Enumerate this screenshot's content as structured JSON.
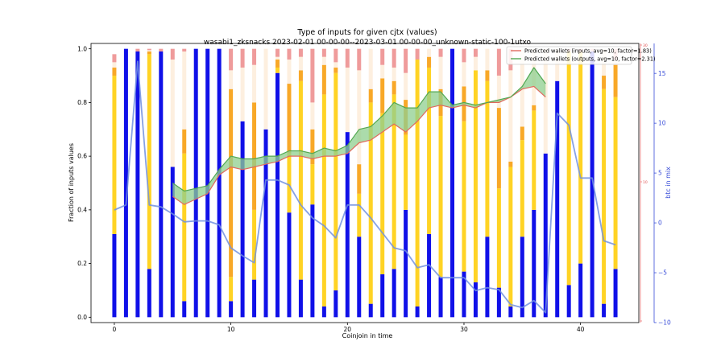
{
  "chart_data": {
    "type": "bar",
    "title": "Type of inputs for given cjtx (values)",
    "subtitle": "wasabi1_zksnacks 2023-02-01 00-00-00--2023-03-01 00-00-00_unknown-static-100-1utxo",
    "xlabel": "Coinjoin in time",
    "ylabel": "Fraction of inputs values",
    "y2label": "btc in mix",
    "xlim": [
      -2,
      45
    ],
    "ylim": [
      -0.02,
      1.02
    ],
    "y2lim": [
      -10,
      18
    ],
    "xticks": [
      0,
      10,
      20,
      30,
      40
    ],
    "yticks": [
      0.0,
      0.2,
      0.4,
      0.6,
      0.8,
      1.0
    ],
    "y2ticks": [
      -10,
      -5,
      0,
      5,
      10,
      15
    ],
    "y3ticks": [
      30,
      10
    ],
    "legend_position": "top-right",
    "legend": [
      "Predicted wallets (inputs, avg=10, factor=1.83)",
      "Predicted wallets (outputs, avg=10, factor=2.31)"
    ],
    "stack_colors": [
      "#a8abf3",
      "#ffd324",
      "#f8a828",
      "#fdefdf",
      "#ef9b9b"
    ],
    "colors": {
      "full_bar": "#1010e8",
      "inputs_line": "#e06a5e",
      "outputs_line": "#52a852",
      "fill": "#8fcf8f",
      "mix_line": "#7190e0",
      "right_axis": "#3a4ed8",
      "third_axis": "#e05050"
    },
    "bars": [
      {
        "x": 0,
        "full": false,
        "segments": [
          0.31,
          0.59,
          0.03,
          0.02,
          0.03
        ]
      },
      {
        "x": 1,
        "full": true
      },
      {
        "x": 2,
        "full": false,
        "segments": [
          0.99,
          0,
          0,
          0,
          0.01
        ]
      },
      {
        "x": 3,
        "full": false,
        "segments": [
          0.18,
          0.8,
          0.01,
          0.005,
          0.005
        ]
      },
      {
        "x": 4,
        "full": false,
        "segments": [
          0.99,
          0,
          0,
          0,
          0.01
        ]
      },
      {
        "x": 5,
        "full": false,
        "segments": [
          0.56,
          0,
          0,
          0.4,
          0.04
        ]
      },
      {
        "x": 6,
        "full": false,
        "segments": [
          0.06,
          0.55,
          0.09,
          0.29,
          0.01
        ]
      },
      {
        "x": 7,
        "full": true
      },
      {
        "x": 8,
        "full": true
      },
      {
        "x": 9,
        "full": true
      },
      {
        "x": 10,
        "full": false,
        "segments": [
          0.06,
          0.09,
          0.7,
          0.07,
          0.08
        ]
      },
      {
        "x": 11,
        "full": false,
        "segments": [
          0.73,
          0,
          0,
          0.2,
          0.07
        ]
      },
      {
        "x": 12,
        "full": false,
        "segments": [
          0.14,
          0.26,
          0.4,
          0.14,
          0.06
        ]
      },
      {
        "x": 13,
        "full": false,
        "segments": [
          0.7,
          0,
          0,
          0.3,
          0
        ]
      },
      {
        "x": 14,
        "full": false,
        "segments": [
          0.91,
          0.02,
          0.03,
          0.01,
          0.03
        ]
      },
      {
        "x": 15,
        "full": false,
        "segments": [
          0.39,
          0.22,
          0.26,
          0.09,
          0.04
        ]
      },
      {
        "x": 16,
        "full": false,
        "segments": [
          0.14,
          0.74,
          0.04,
          0.05,
          0.03
        ]
      },
      {
        "x": 17,
        "full": false,
        "segments": [
          0.42,
          0.15,
          0.13,
          0.1,
          0.2
        ]
      },
      {
        "x": 18,
        "full": false,
        "segments": [
          0.04,
          0.79,
          0.11,
          0.03,
          0.03
        ]
      },
      {
        "x": 19,
        "full": false,
        "segments": [
          0.1,
          0.81,
          0.02,
          0.02,
          0.05
        ]
      },
      {
        "x": 20,
        "full": false,
        "segments": [
          0.69,
          0,
          0,
          0.24,
          0.07
        ]
      },
      {
        "x": 21,
        "full": false,
        "segments": [
          0.3,
          0.16,
          0.11,
          0.35,
          0.08
        ]
      },
      {
        "x": 22,
        "full": false,
        "segments": [
          0.05,
          0.75,
          0.05,
          0.15,
          0
        ]
      },
      {
        "x": 23,
        "full": false,
        "segments": [
          0.16,
          0.6,
          0.13,
          0.05,
          0.06
        ]
      },
      {
        "x": 24,
        "full": false,
        "segments": [
          0.18,
          0.65,
          0.05,
          0.05,
          0.07
        ]
      },
      {
        "x": 25,
        "full": false,
        "segments": [
          0.4,
          0.28,
          0.13,
          0.1,
          0.09
        ]
      },
      {
        "x": 26,
        "full": false,
        "segments": [
          0.04,
          0.92,
          0,
          0,
          0.04
        ]
      },
      {
        "x": 27,
        "full": false,
        "segments": [
          0.31,
          0.62,
          0.04,
          0.03,
          0
        ]
      },
      {
        "x": 28,
        "full": false,
        "segments": [
          0.15,
          0.6,
          0.1,
          0.12,
          0.03
        ]
      },
      {
        "x": 29,
        "full": true
      },
      {
        "x": 30,
        "full": false,
        "segments": [
          0.17,
          0.56,
          0.13,
          0.09,
          0.05
        ]
      },
      {
        "x": 31,
        "full": false,
        "segments": [
          0.13,
          0.79,
          0,
          0.05,
          0.03
        ]
      },
      {
        "x": 32,
        "full": false,
        "segments": [
          0.3,
          0.58,
          0.04,
          0.08,
          0
        ]
      },
      {
        "x": 33,
        "full": false,
        "segments": [
          0.11,
          0.37,
          0.3,
          0.12,
          0.1
        ]
      },
      {
        "x": 34,
        "full": false,
        "segments": [
          0.04,
          0.52,
          0.02,
          0.34,
          0.08
        ]
      },
      {
        "x": 35,
        "full": false,
        "segments": [
          0.3,
          0.36,
          0.05,
          0.29,
          0
        ]
      },
      {
        "x": 36,
        "full": false,
        "segments": [
          0.4,
          0.37,
          0.02,
          0.21,
          0
        ]
      },
      {
        "x": 37,
        "full": false,
        "segments": [
          0.61,
          0,
          0,
          0.39,
          0
        ]
      },
      {
        "x": 38,
        "full": false,
        "segments": [
          0.88,
          0,
          0,
          0.12,
          0
        ]
      },
      {
        "x": 39,
        "full": false,
        "segments": [
          0.12,
          0.87,
          0,
          0,
          0.01
        ]
      },
      {
        "x": 40,
        "full": false,
        "segments": [
          0.2,
          0.79,
          0,
          0,
          0.01
        ]
      },
      {
        "x": 41,
        "full": false,
        "segments": [
          0.99,
          0,
          0,
          0,
          0.01
        ]
      },
      {
        "x": 42,
        "full": false,
        "segments": [
          0.05,
          0.8,
          0.05,
          0.1,
          0
        ]
      },
      {
        "x": 43,
        "full": false,
        "segments": [
          0.18,
          0.64,
          0.12,
          0.02,
          0.04
        ]
      }
    ],
    "series": [
      {
        "name": "Predicted wallets (inputs, avg=10, factor=1.83)",
        "x": [
          5,
          6,
          7,
          8,
          9,
          10,
          11,
          12,
          13,
          14,
          15,
          16,
          17,
          18,
          19,
          20,
          21,
          22,
          23,
          24,
          25,
          26,
          27,
          28,
          29,
          30,
          31,
          32,
          33,
          34,
          35,
          36,
          37
        ],
        "values": [
          0.45,
          0.42,
          0.44,
          0.46,
          0.53,
          0.56,
          0.55,
          0.56,
          0.57,
          0.58,
          0.6,
          0.6,
          0.59,
          0.6,
          0.6,
          0.61,
          0.65,
          0.66,
          0.69,
          0.72,
          0.69,
          0.73,
          0.78,
          0.79,
          0.78,
          0.79,
          0.78,
          0.8,
          0.8,
          0.82,
          0.85,
          0.86,
          0.82
        ]
      },
      {
        "name": "Predicted wallets (outputs, avg=10, factor=2.31)",
        "x": [
          5,
          6,
          7,
          8,
          9,
          10,
          11,
          12,
          13,
          14,
          15,
          16,
          17,
          18,
          19,
          20,
          21,
          22,
          23,
          24,
          25,
          26,
          27,
          28,
          29,
          30,
          31,
          32,
          33,
          34,
          35,
          36,
          37
        ],
        "values": [
          0.5,
          0.47,
          0.48,
          0.49,
          0.55,
          0.6,
          0.59,
          0.59,
          0.6,
          0.6,
          0.62,
          0.62,
          0.61,
          0.63,
          0.62,
          0.64,
          0.7,
          0.71,
          0.75,
          0.8,
          0.78,
          0.78,
          0.84,
          0.84,
          0.79,
          0.8,
          0.79,
          0.8,
          0.81,
          0.82,
          0.86,
          0.93,
          0.87
        ]
      },
      {
        "name": "btc in mix",
        "axis": "right",
        "x": [
          0,
          1,
          2,
          3,
          4,
          5,
          6,
          7,
          8,
          9,
          10,
          11,
          12,
          13,
          14,
          15,
          16,
          17,
          18,
          19,
          20,
          21,
          22,
          23,
          24,
          25,
          26,
          27,
          28,
          29,
          30,
          31,
          32,
          33,
          34,
          35,
          36,
          37,
          38,
          39,
          40,
          41,
          42,
          43
        ],
        "values": [
          1.3,
          1.8,
          16.2,
          1.8,
          1.6,
          0.9,
          0.1,
          0.2,
          0.2,
          -0.2,
          -2.5,
          -3.3,
          -4,
          4.3,
          4.3,
          3.8,
          1.8,
          0.5,
          -0.3,
          -1.5,
          1.8,
          1.8,
          0.5,
          -1,
          -2.5,
          -2.8,
          -4.5,
          -4.2,
          -5.5,
          -5.5,
          -5.5,
          -6.8,
          -6.5,
          -6.7,
          -8.2,
          -8.5,
          -7.8,
          -9,
          11,
          9.8,
          4.5,
          4.5,
          -1.8,
          -2.2
        ]
      }
    ]
  }
}
